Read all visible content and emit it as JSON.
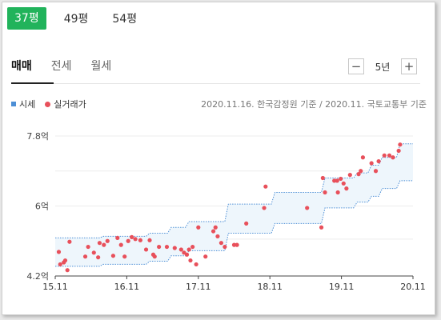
{
  "size_tabs": [
    "37평",
    "49평",
    "54평"
  ],
  "deal_tabs": [
    "매매",
    "전세",
    "월세"
  ],
  "period": {
    "minus_label": "−",
    "value": "5년",
    "plus_label": "+"
  },
  "legend": {
    "band_label": "시세",
    "dot_label": "실거래가"
  },
  "source_text": "2020.11.16. 한국감정원 기준 / 2020.11. 국토교통부 기준",
  "colors": {
    "accent": "#21b35b",
    "band": "#4d8fd6",
    "dot": "#e8505b"
  },
  "chart_data": {
    "type": "scatter",
    "xlim": [
      2015.88,
      2020.88
    ],
    "ylim": [
      4.2,
      7.8
    ],
    "y_ticks": [
      {
        "v": 4.2,
        "label": "4.2억"
      },
      {
        "v": 6.0,
        "label": "6억"
      },
      {
        "v": 7.8,
        "label": "7.8억"
      }
    ],
    "x_ticks": [
      {
        "v": 2015.88,
        "label": "15.11"
      },
      {
        "v": 2016.88,
        "label": "16.11"
      },
      {
        "v": 2017.88,
        "label": "17.11"
      },
      {
        "v": 2018.88,
        "label": "18.11"
      },
      {
        "v": 2019.88,
        "label": "19.11"
      },
      {
        "v": 2020.88,
        "label": "20.11"
      }
    ],
    "gridlines": [
      5.15,
      6.0,
      6.9,
      7.8
    ],
    "price_band": {
      "name": "시세",
      "lower": [
        [
          2015.88,
          4.45
        ],
        [
          2016.5,
          4.45
        ],
        [
          2016.55,
          4.5
        ],
        [
          2017.15,
          4.5
        ],
        [
          2017.2,
          4.58
        ],
        [
          2017.45,
          4.58
        ],
        [
          2017.5,
          4.72
        ],
        [
          2017.7,
          4.72
        ],
        [
          2017.75,
          4.85
        ],
        [
          2018.25,
          4.85
        ],
        [
          2018.3,
          5.3
        ],
        [
          2018.9,
          5.3
        ],
        [
          2018.95,
          5.55
        ],
        [
          2019.6,
          5.55
        ],
        [
          2019.65,
          5.95
        ],
        [
          2020.05,
          5.95
        ],
        [
          2020.1,
          6.1
        ],
        [
          2020.25,
          6.1
        ],
        [
          2020.3,
          6.25
        ],
        [
          2020.4,
          6.25
        ],
        [
          2020.45,
          6.45
        ],
        [
          2020.65,
          6.45
        ],
        [
          2020.7,
          6.65
        ],
        [
          2020.88,
          6.65
        ]
      ],
      "upper": [
        [
          2015.88,
          5.18
        ],
        [
          2016.5,
          5.18
        ],
        [
          2016.55,
          5.22
        ],
        [
          2017.15,
          5.22
        ],
        [
          2017.2,
          5.3
        ],
        [
          2017.45,
          5.3
        ],
        [
          2017.5,
          5.45
        ],
        [
          2017.7,
          5.45
        ],
        [
          2017.75,
          5.6
        ],
        [
          2018.25,
          5.6
        ],
        [
          2018.3,
          6.05
        ],
        [
          2018.9,
          6.05
        ],
        [
          2018.95,
          6.35
        ],
        [
          2019.6,
          6.35
        ],
        [
          2019.65,
          6.72
        ],
        [
          2020.05,
          6.72
        ],
        [
          2020.1,
          6.85
        ],
        [
          2020.25,
          6.85
        ],
        [
          2020.3,
          7.05
        ],
        [
          2020.4,
          7.05
        ],
        [
          2020.45,
          7.25
        ],
        [
          2020.65,
          7.25
        ],
        [
          2020.7,
          7.6
        ],
        [
          2020.88,
          7.6
        ]
      ]
    },
    "transactions": {
      "name": "실거래가",
      "points": [
        [
          2015.93,
          4.82
        ],
        [
          2015.95,
          4.5
        ],
        [
          2016.0,
          4.55
        ],
        [
          2016.02,
          4.6
        ],
        [
          2016.05,
          4.35
        ],
        [
          2016.08,
          5.08
        ],
        [
          2016.3,
          4.7
        ],
        [
          2016.34,
          4.95
        ],
        [
          2016.42,
          4.8
        ],
        [
          2016.48,
          4.68
        ],
        [
          2016.5,
          5.05
        ],
        [
          2016.56,
          5.0
        ],
        [
          2016.61,
          5.1
        ],
        [
          2016.69,
          4.72
        ],
        [
          2016.75,
          5.18
        ],
        [
          2016.8,
          5.0
        ],
        [
          2016.85,
          4.7
        ],
        [
          2016.9,
          5.1
        ],
        [
          2016.95,
          5.2
        ],
        [
          2017.0,
          5.15
        ],
        [
          2017.07,
          5.12
        ],
        [
          2017.15,
          4.88
        ],
        [
          2017.2,
          5.12
        ],
        [
          2017.25,
          4.75
        ],
        [
          2017.27,
          4.7
        ],
        [
          2017.33,
          4.95
        ],
        [
          2017.44,
          4.95
        ],
        [
          2017.55,
          4.92
        ],
        [
          2017.64,
          4.88
        ],
        [
          2017.68,
          4.8
        ],
        [
          2017.72,
          4.75
        ],
        [
          2017.75,
          4.88
        ],
        [
          2017.77,
          4.6
        ],
        [
          2017.8,
          4.95
        ],
        [
          2017.85,
          4.5
        ],
        [
          2017.88,
          5.45
        ],
        [
          2017.98,
          4.7
        ],
        [
          2018.09,
          5.35
        ],
        [
          2018.12,
          5.45
        ],
        [
          2018.15,
          5.22
        ],
        [
          2018.2,
          5.05
        ],
        [
          2018.25,
          4.95
        ],
        [
          2018.38,
          5.0
        ],
        [
          2018.42,
          5.0
        ],
        [
          2018.55,
          5.55
        ],
        [
          2018.8,
          5.95
        ],
        [
          2018.82,
          6.5
        ],
        [
          2019.4,
          5.95
        ],
        [
          2019.6,
          5.45
        ],
        [
          2019.62,
          6.72
        ],
        [
          2019.65,
          6.35
        ],
        [
          2019.78,
          6.65
        ],
        [
          2019.82,
          6.65
        ],
        [
          2019.83,
          6.35
        ],
        [
          2019.87,
          6.7
        ],
        [
          2019.91,
          6.58
        ],
        [
          2019.95,
          6.45
        ],
        [
          2020.0,
          6.8
        ],
        [
          2020.12,
          6.82
        ],
        [
          2020.15,
          6.9
        ],
        [
          2020.18,
          7.25
        ],
        [
          2020.3,
          7.1
        ],
        [
          2020.36,
          6.9
        ],
        [
          2020.4,
          7.15
        ],
        [
          2020.48,
          7.3
        ],
        [
          2020.55,
          7.3
        ],
        [
          2020.6,
          7.25
        ],
        [
          2020.68,
          7.42
        ],
        [
          2020.7,
          7.58
        ]
      ]
    }
  }
}
